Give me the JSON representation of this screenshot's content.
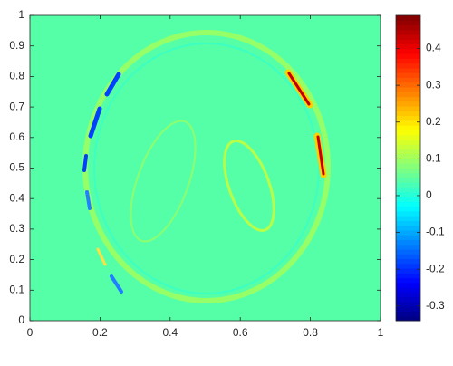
{
  "chart_data": {
    "type": "heatmap",
    "xlim": [
      0,
      1
    ],
    "xticks": [
      0,
      0.2,
      0.4,
      0.6,
      0.8,
      1
    ],
    "ylim": [
      0,
      1
    ],
    "yticks": [
      0,
      0.1,
      0.2,
      0.3,
      0.4,
      0.5,
      0.6,
      0.7,
      0.8,
      0.9,
      1
    ],
    "colormap": "jet",
    "clim": [
      -0.34,
      0.49
    ],
    "colorbar_ticks": [
      -0.3,
      -0.2,
      -0.1,
      0,
      0.1,
      0.2,
      0.3,
      0.4
    ]
  }
}
